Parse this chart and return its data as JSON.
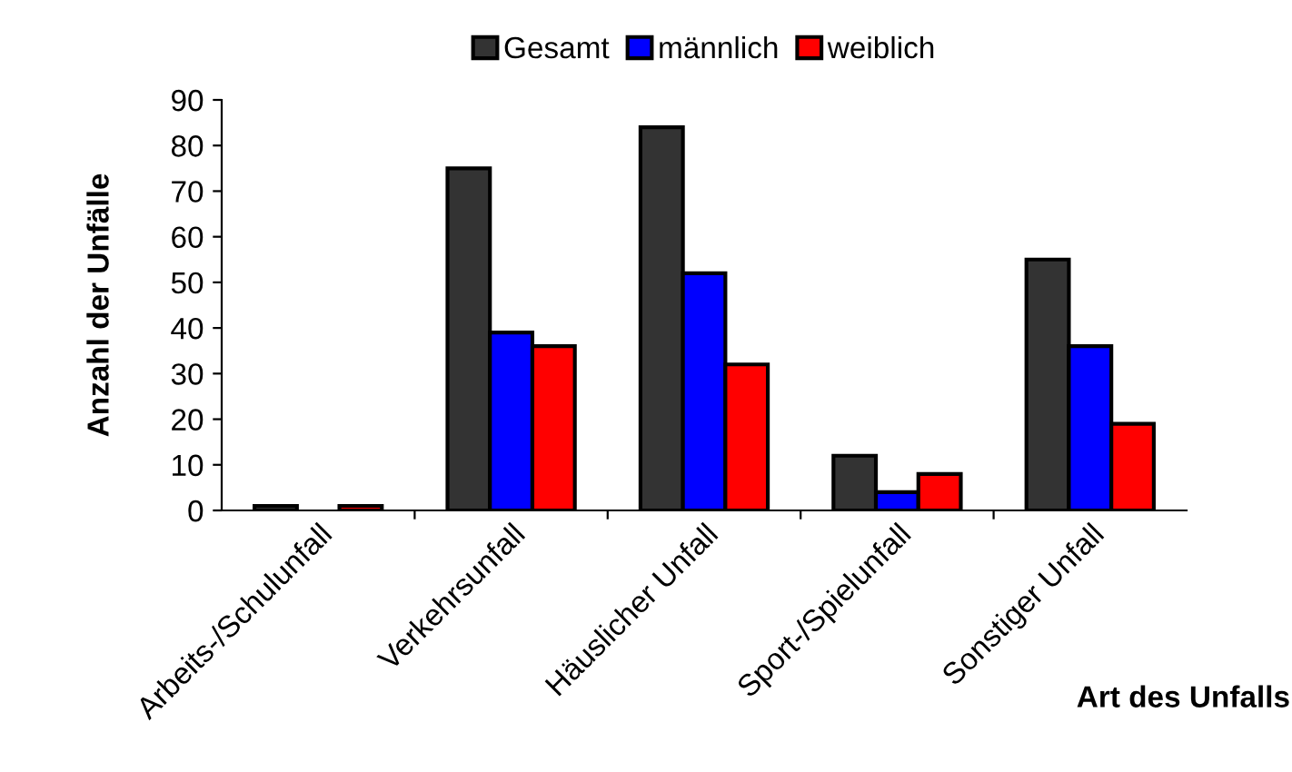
{
  "chart_data": {
    "type": "bar",
    "xlabel": "Art des Unfalls",
    "ylabel": "Anzahl der Unfälle",
    "categories": [
      "Arbeits-/Schulunfall",
      "Verkehrsunfall",
      "Häuslicher Unfall",
      "Sport-/Spielunfall",
      "Sonstiger Unfall"
    ],
    "series": [
      {
        "name": "Gesamt",
        "color": "#333333",
        "values": [
          1,
          75,
          84,
          12,
          55
        ]
      },
      {
        "name": "männlich",
        "color": "#0000ff",
        "values": [
          null,
          39,
          52,
          4,
          36
        ]
      },
      {
        "name": "weiblich",
        "color": "#ff0000",
        "values": [
          1,
          36,
          32,
          8,
          19
        ]
      }
    ],
    "ylim": [
      0,
      90
    ],
    "yticks": [
      0,
      10,
      20,
      30,
      40,
      50,
      60,
      70,
      80,
      90
    ],
    "grid": false,
    "legend": "top"
  }
}
